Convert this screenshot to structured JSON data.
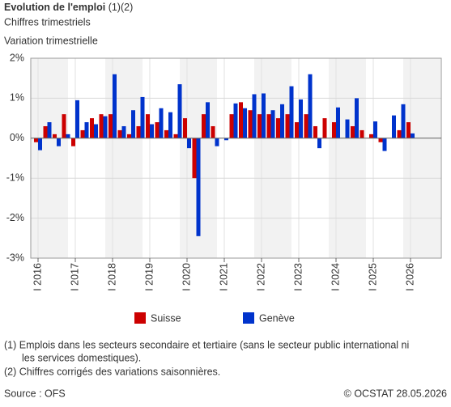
{
  "chart_data": {
    "type": "bar",
    "title": "Evolution de l'emploi",
    "title_note": "(1)(2)",
    "subtitle": "Chiffres trimestriels",
    "y_label": "Variation trimestrielle",
    "categories": [
      "I 2016",
      null,
      null,
      null,
      "I 2017",
      null,
      null,
      null,
      "I 2018",
      null,
      null,
      null,
      "I 2019",
      null,
      null,
      null,
      "I 2020",
      null,
      null,
      null,
      "I 2021",
      null,
      null,
      null,
      "I 2022",
      null,
      null,
      null,
      "I 2023",
      null,
      null,
      null,
      "I 2024",
      null,
      null,
      null,
      "I 2025",
      null,
      null,
      null,
      "I 2026"
    ],
    "series": [
      {
        "name": "Suisse",
        "color": "#cc0000",
        "values": [
          -0.1,
          0.3,
          0.1,
          0.6,
          -0.2,
          0.2,
          0.5,
          0.6,
          0.6,
          0.2,
          0.1,
          0.3,
          0.6,
          0.4,
          0.2,
          0.1,
          0.5,
          -1.0,
          0.6,
          0.3,
          0.0,
          0.6,
          0.9,
          0.7,
          0.6,
          0.6,
          0.5,
          0.6,
          0.4,
          0.6,
          0.3,
          0.5,
          0.4,
          0.0,
          0.3,
          0.2,
          0.1,
          -0.1,
          0.0,
          0.2,
          0.4
        ]
      },
      {
        "name": "Genève",
        "color": "#0033cc",
        "values": [
          -0.3,
          0.4,
          -0.2,
          0.1,
          0.95,
          0.4,
          0.35,
          0.55,
          1.6,
          0.3,
          0.7,
          1.03,
          0.35,
          0.75,
          0.65,
          1.35,
          -0.25,
          -2.45,
          0.9,
          -0.2,
          -0.05,
          0.87,
          0.75,
          1.1,
          1.12,
          0.7,
          0.85,
          1.3,
          0.97,
          1.6,
          -0.25,
          0.0,
          0.77,
          0.47,
          1.0,
          0.0,
          0.42,
          -0.32,
          0.57,
          0.85,
          0.12
        ]
      }
    ],
    "ylim": [
      -3,
      2
    ],
    "yticks": [
      {
        "value": -3,
        "label": "-3%"
      },
      {
        "value": -2,
        "label": "-2%"
      },
      {
        "value": -1,
        "label": "-1%"
      },
      {
        "value": 0,
        "label": "0%"
      },
      {
        "value": 1,
        "label": "1%"
      },
      {
        "value": 2,
        "label": "2%"
      }
    ],
    "grid": true,
    "notes": [
      "(1) Emplois dans les secteurs secondaire et tertiaire (sans le secteur public international ni",
      "les services domestiques).",
      "(2) Chiffres corrigés des variations saisonnières."
    ],
    "source": "Source : OFS",
    "copyright": "© OCSTAT 28.05.2026"
  }
}
